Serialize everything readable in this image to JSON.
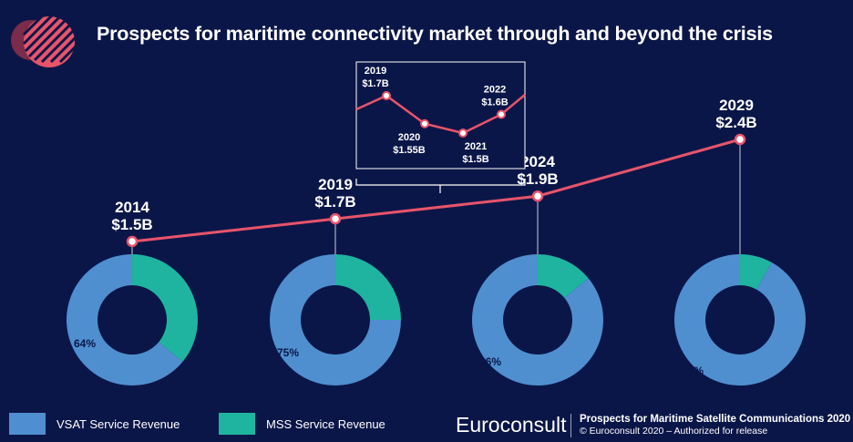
{
  "title": "Prospects for maritime connectivity market through and beyond the crisis",
  "colors": {
    "background": "#0b1648",
    "line": "#e8546a",
    "vsat": "#4f8fcf",
    "mss": "#1fb4a0",
    "text": "#ffffff"
  },
  "chart_data": [
    {
      "type": "line",
      "title": "",
      "x": [
        "2014",
        "2019",
        "2024",
        "2029"
      ],
      "y": [
        1.5,
        1.7,
        1.9,
        2.4
      ],
      "labels": [
        "$1.5B",
        "$1.7B",
        "$1.9B",
        "$2.4B"
      ]
    },
    {
      "type": "line",
      "title": "",
      "x": [
        "2019",
        "2020",
        "2021",
        "2022"
      ],
      "y": [
        1.7,
        1.55,
        1.5,
        1.6
      ],
      "labels": [
        "$1.7B",
        "$1.55B",
        "$1.5B",
        "$1.6B"
      ]
    },
    {
      "type": "pie",
      "title": "",
      "categories": [
        "VSAT Service Revenue",
        "MSS Service Revenue"
      ],
      "series": [
        {
          "year": "2014",
          "values": [
            64,
            36
          ],
          "label": "64%"
        },
        {
          "year": "2019",
          "values": [
            75,
            25
          ],
          "label": "75%"
        },
        {
          "year": "2024",
          "values": [
            86,
            14
          ],
          "label": "86%"
        },
        {
          "year": "2029",
          "values": [
            92,
            8
          ],
          "label": "92%"
        }
      ]
    }
  ],
  "legend": {
    "vsat_label": "VSAT Service Revenue",
    "mss_label": "MSS Service Revenue"
  },
  "footer": {
    "brand": "Euroconsult",
    "report_title": "Prospects for Maritime Satellite Communications 2020",
    "copyright": "© Euroconsult 2020 – Authorized for release"
  }
}
